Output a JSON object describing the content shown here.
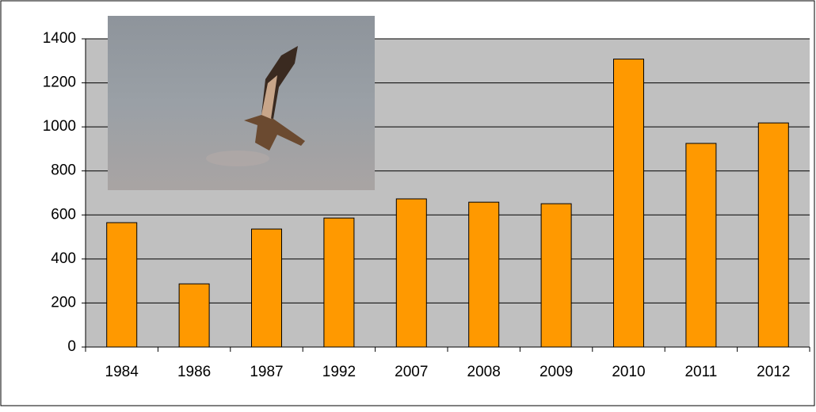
{
  "chart_data": {
    "type": "bar",
    "categories": [
      "1984",
      "1986",
      "1987",
      "1992",
      "2007",
      "2008",
      "2009",
      "2010",
      "2011",
      "2012"
    ],
    "values": [
      565,
      287,
      536,
      586,
      673,
      658,
      651,
      1308,
      925,
      1018
    ],
    "color": "#ff9900",
    "ylim": [
      0,
      1400
    ],
    "yticks": [
      0,
      200,
      400,
      600,
      800,
      1000,
      1200,
      1400
    ],
    "grid": true
  }
}
